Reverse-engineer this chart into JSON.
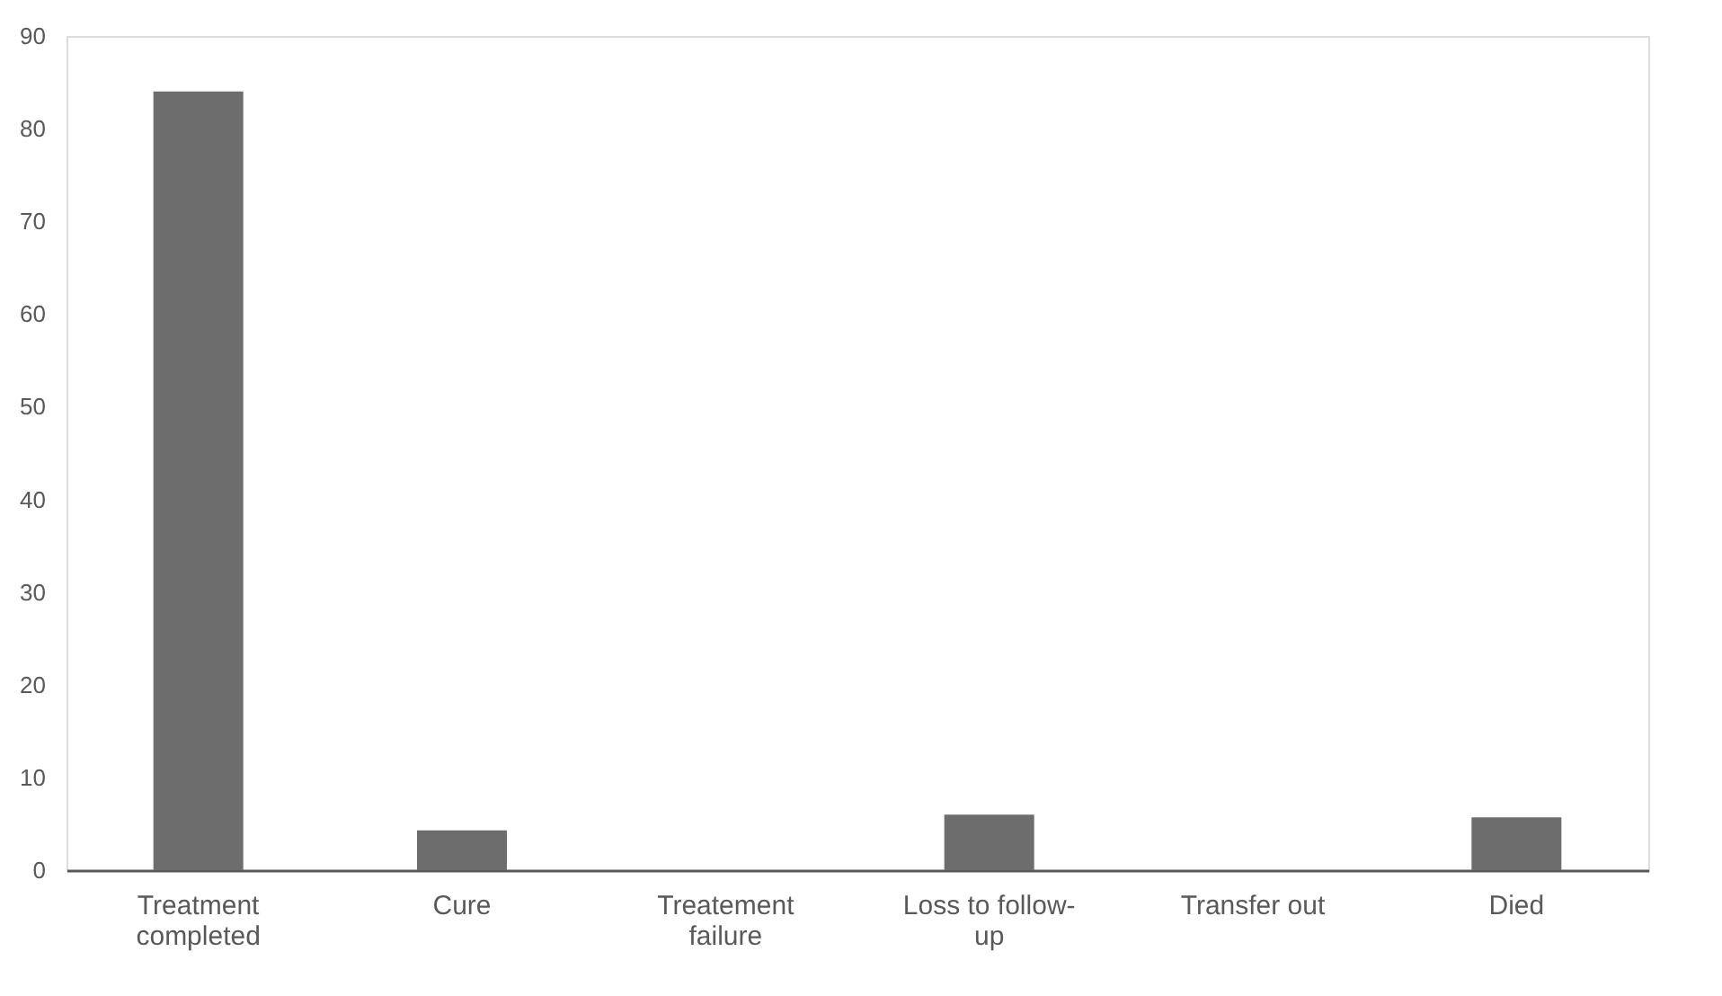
{
  "chart_data": {
    "type": "bar",
    "categories": [
      "Treatment completed",
      "Cure",
      "Treatement failure",
      "Loss to follow-up",
      "Transfer out",
      "Died"
    ],
    "values": [
      84,
      4.3,
      0,
      6,
      0,
      5.7
    ],
    "color": "#6d6d6d",
    "ylim": [
      0,
      90
    ],
    "yticks": [
      0,
      10,
      20,
      30,
      40,
      50,
      60,
      70,
      80,
      90
    ],
    "grid": false
  }
}
